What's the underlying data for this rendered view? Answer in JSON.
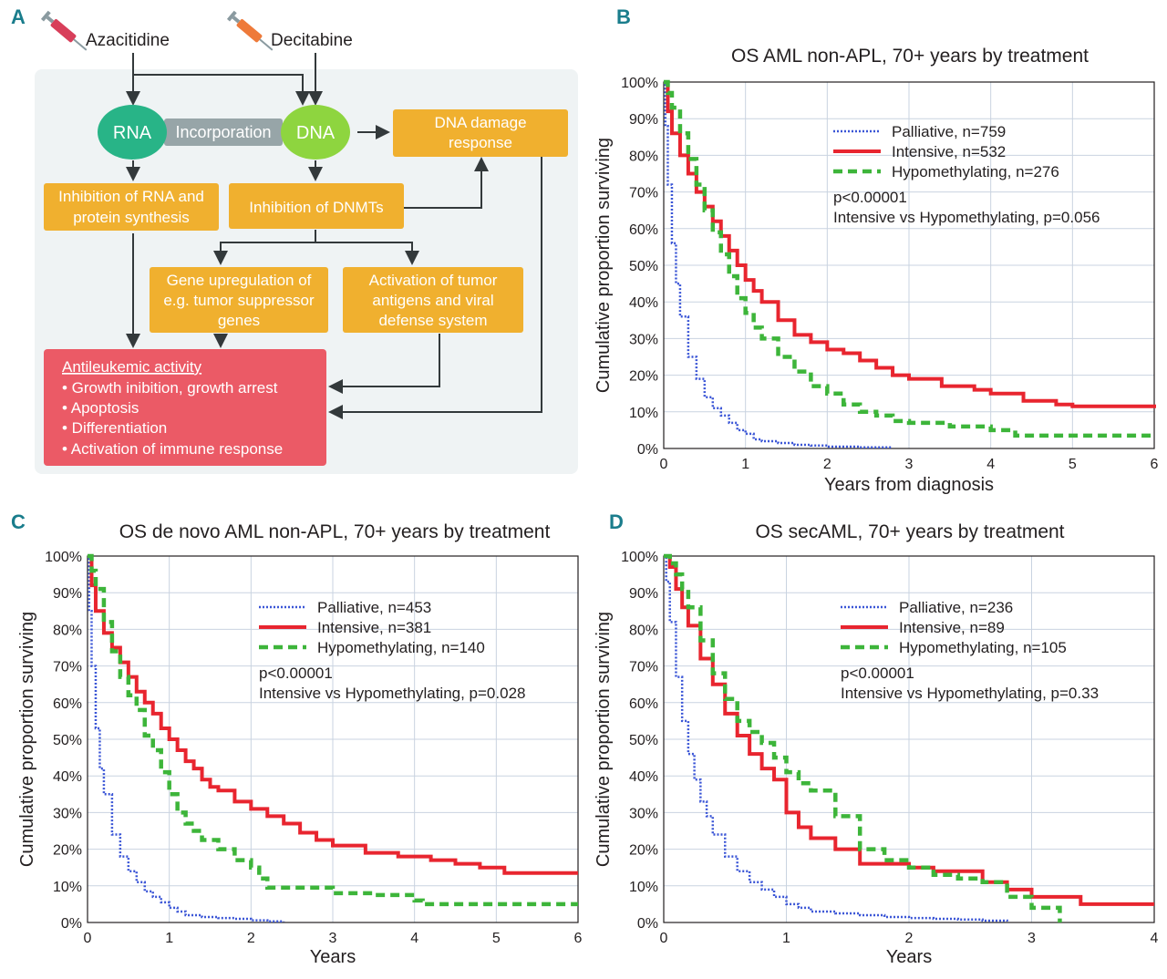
{
  "panel_labels": {
    "a": "A",
    "b": "B",
    "c": "C",
    "d": "D"
  },
  "diagram": {
    "drugs": {
      "azacitidine": "Azacitidine",
      "decitabine": "Decitabine"
    },
    "rna": "RNA",
    "incorporation": "Incorporation",
    "dna": "DNA",
    "dna_damage": [
      "DNA damage",
      "response"
    ],
    "rna_inhibition": [
      "Inhibition of RNA and",
      "protein synthesis"
    ],
    "dnmt_inhibition": "Inhibition of DNMTs",
    "gene_upregulation": [
      "Gene upregulation of",
      "e.g. tumor suppressor",
      "genes"
    ],
    "antigen_activation": [
      "Activation of tumor",
      "antigens and viral",
      "defense system"
    ],
    "antileukemic": {
      "title": "Antileukemic activity",
      "items": [
        "• Growth inibition, growth arrest",
        "• Apoptosis",
        "• Differentiation",
        "• Activation of immune response"
      ]
    },
    "colors": {
      "teal": "#28b487",
      "green": "#8ed53f",
      "grey": "#97a5a8",
      "orange": "#f0b02f",
      "red": "#eb5a66",
      "bg": "#eff3f4"
    }
  },
  "chart_data": [
    {
      "id": "B",
      "type": "line",
      "title": "OS AML non-APL, 70+ years by treatment",
      "xlabel": "Years from diagnosis",
      "ylabel": "Cumulative proportion surviving",
      "xlim": [
        0,
        6
      ],
      "ylim": [
        0,
        100
      ],
      "xticks": [
        "0",
        "1",
        "2",
        "3",
        "4",
        "5",
        "6"
      ],
      "yticks": [
        "0%",
        "10%",
        "20%",
        "30%",
        "40%",
        "50%",
        "60%",
        "70%",
        "80%",
        "90%",
        "100%"
      ],
      "annotations": [
        "p<0.00001",
        "Intensive vs Hypomethylating, p=0.056"
      ],
      "series": [
        {
          "name": "Palliative, n=759",
          "color": "#3a55d6",
          "style": "dotted",
          "x": [
            0,
            0.02,
            0.05,
            0.1,
            0.15,
            0.2,
            0.3,
            0.4,
            0.5,
            0.6,
            0.7,
            0.8,
            0.9,
            1.0,
            1.1,
            1.2,
            1.4,
            1.6,
            1.8,
            2.0,
            2.4,
            2.8
          ],
          "y": [
            100,
            88,
            72,
            56,
            45,
            36,
            25,
            19,
            14,
            11,
            9,
            7,
            5,
            4,
            2.5,
            2,
            1.5,
            1,
            0.8,
            0.5,
            0.3,
            0.3
          ]
        },
        {
          "name": "Intensive, n=532",
          "color": "#e8252f",
          "style": "solid",
          "x": [
            0,
            0.05,
            0.1,
            0.2,
            0.3,
            0.4,
            0.5,
            0.6,
            0.7,
            0.8,
            0.9,
            1.0,
            1.1,
            1.2,
            1.4,
            1.6,
            1.8,
            2.0,
            2.2,
            2.4,
            2.6,
            2.8,
            3.0,
            3.4,
            3.8,
            4.0,
            4.4,
            4.8,
            5.0,
            5.5,
            6.0
          ],
          "y": [
            100,
            92,
            86,
            80,
            75,
            70,
            66,
            62,
            58,
            54,
            50,
            46,
            43,
            40,
            35,
            31,
            29,
            27,
            26,
            24,
            22,
            20,
            19,
            17,
            16,
            15,
            13,
            12,
            11.5,
            11.5,
            11
          ]
        },
        {
          "name": "Hypomethylating, n=276",
          "color": "#3db53a",
          "style": "dashed",
          "x": [
            0,
            0.05,
            0.1,
            0.2,
            0.3,
            0.4,
            0.5,
            0.6,
            0.7,
            0.8,
            0.9,
            1.0,
            1.1,
            1.2,
            1.4,
            1.6,
            1.8,
            2.0,
            2.2,
            2.4,
            2.6,
            2.8,
            3.0,
            3.5,
            4.0,
            4.3,
            5.0,
            6.0
          ],
          "y": [
            100,
            97,
            93,
            86,
            79,
            72,
            65,
            59,
            53,
            47,
            41,
            37,
            33,
            30,
            25,
            21,
            17,
            15,
            12,
            10,
            9,
            7.5,
            7,
            6,
            5,
            3.5,
            3.5,
            3.5
          ]
        }
      ]
    },
    {
      "id": "C",
      "type": "line",
      "title": "OS de novo AML non-APL, 70+ years by treatment",
      "xlabel": "Years",
      "ylabel": "Cumulative proportion surviving",
      "xlim": [
        0,
        6
      ],
      "ylim": [
        0,
        100
      ],
      "xticks": [
        "0",
        "1",
        "2",
        "3",
        "4",
        "5",
        "6"
      ],
      "yticks": [
        "0%",
        "10%",
        "20%",
        "30%",
        "40%",
        "50%",
        "60%",
        "70%",
        "80%",
        "90%",
        "100%"
      ],
      "annotations": [
        "p<0.00001",
        "Intensive vs Hypomethylating, p=0.028"
      ],
      "series": [
        {
          "name": "Palliative, n=453",
          "color": "#3a55d6",
          "style": "dotted",
          "x": [
            0,
            0.02,
            0.05,
            0.1,
            0.15,
            0.2,
            0.3,
            0.4,
            0.5,
            0.6,
            0.7,
            0.8,
            0.9,
            1.0,
            1.1,
            1.2,
            1.4,
            1.6,
            1.8,
            2.0,
            2.2,
            2.4
          ],
          "y": [
            100,
            85,
            70,
            53,
            42,
            35,
            24,
            18,
            14,
            11,
            8.5,
            7,
            5.5,
            4,
            3,
            2,
            1.5,
            1.2,
            1,
            0.6,
            0.3,
            0.2
          ]
        },
        {
          "name": "Intensive, n=381",
          "color": "#e8252f",
          "style": "solid",
          "x": [
            0,
            0.05,
            0.1,
            0.2,
            0.3,
            0.4,
            0.5,
            0.6,
            0.7,
            0.8,
            0.9,
            1.0,
            1.1,
            1.2,
            1.3,
            1.4,
            1.5,
            1.6,
            1.8,
            2.0,
            2.2,
            2.4,
            2.6,
            2.8,
            3.0,
            3.4,
            3.8,
            4.2,
            4.5,
            4.8,
            5.1,
            5.5,
            6.0
          ],
          "y": [
            100,
            92,
            85,
            79,
            75,
            71,
            67,
            63,
            60,
            57,
            53,
            50,
            47,
            44,
            42,
            39,
            37,
            36,
            33,
            31,
            29,
            27,
            24.5,
            22.5,
            21,
            19,
            18,
            17,
            16,
            15,
            13.5,
            13.5,
            13.5
          ]
        },
        {
          "name": "Hypomethylating, n=140",
          "color": "#3db53a",
          "style": "dashed",
          "x": [
            0,
            0.05,
            0.1,
            0.2,
            0.3,
            0.4,
            0.5,
            0.6,
            0.7,
            0.8,
            0.9,
            1.0,
            1.1,
            1.2,
            1.3,
            1.4,
            1.6,
            1.8,
            2.0,
            2.1,
            2.2,
            2.6,
            3.0,
            3.5,
            4.0,
            4.1,
            5.0,
            6.0
          ],
          "y": [
            100,
            96,
            91,
            82,
            74,
            67,
            62,
            58,
            51,
            47,
            41,
            35,
            30,
            27,
            25,
            22.5,
            20,
            17,
            15,
            12,
            9.5,
            9.5,
            8,
            7.5,
            6,
            5,
            5,
            5
          ]
        }
      ]
    },
    {
      "id": "D",
      "type": "line",
      "title": "OS secAML, 70+ years by treatment",
      "xlabel": "Years",
      "ylabel": "Cumulative proportion surviving",
      "xlim": [
        0,
        4
      ],
      "ylim": [
        0,
        100
      ],
      "xticks": [
        "0",
        "1",
        "2",
        "3",
        "4"
      ],
      "yticks": [
        "0%",
        "10%",
        "20%",
        "30%",
        "40%",
        "50%",
        "60%",
        "70%",
        "80%",
        "90%",
        "100%"
      ],
      "annotations": [
        "p<0.00001",
        "Intensive vs Hypomethylating, p=0.33"
      ],
      "series": [
        {
          "name": "Palliative, n=236",
          "color": "#3a55d6",
          "style": "dotted",
          "x": [
            0,
            0.02,
            0.05,
            0.1,
            0.15,
            0.2,
            0.25,
            0.3,
            0.35,
            0.4,
            0.5,
            0.6,
            0.7,
            0.8,
            0.9,
            1.0,
            1.1,
            1.2,
            1.4,
            1.6,
            1.8,
            2.0,
            2.2,
            2.4,
            2.6,
            2.8
          ],
          "y": [
            100,
            93,
            82,
            67,
            55,
            46,
            39,
            33,
            29,
            24,
            18,
            14,
            11,
            9,
            7,
            5,
            4,
            3,
            2.5,
            2,
            1.5,
            1.2,
            1,
            0.8,
            0.5,
            0.3
          ]
        },
        {
          "name": "Intensive, n=89",
          "color": "#e8252f",
          "style": "solid",
          "x": [
            0,
            0.05,
            0.1,
            0.15,
            0.2,
            0.3,
            0.4,
            0.5,
            0.6,
            0.7,
            0.8,
            0.9,
            1.0,
            1.1,
            1.2,
            1.4,
            1.6,
            1.8,
            2.0,
            2.2,
            2.4,
            2.6,
            2.8,
            3.0,
            3.4,
            3.6,
            4.0
          ],
          "y": [
            100,
            97,
            91,
            86,
            81,
            72,
            65,
            57,
            51,
            46,
            42,
            39,
            30,
            26,
            23,
            20,
            16,
            16,
            15,
            14,
            14,
            11,
            9,
            7,
            5,
            5,
            5
          ]
        },
        {
          "name": "Hypomethylating, n=105",
          "color": "#3db53a",
          "style": "dashed",
          "x": [
            0,
            0.05,
            0.1,
            0.15,
            0.2,
            0.3,
            0.4,
            0.5,
            0.6,
            0.7,
            0.8,
            0.9,
            1.0,
            1.1,
            1.2,
            1.4,
            1.6,
            1.8,
            2.0,
            2.2,
            2.4,
            2.6,
            2.8,
            3.0,
            3.2,
            3.23
          ],
          "y": [
            100,
            98,
            95,
            91,
            86,
            77,
            68,
            61,
            55,
            52,
            49,
            45,
            41,
            38,
            36,
            29,
            20,
            17,
            15,
            13,
            12,
            11,
            7,
            4,
            4,
            0
          ]
        }
      ]
    }
  ]
}
